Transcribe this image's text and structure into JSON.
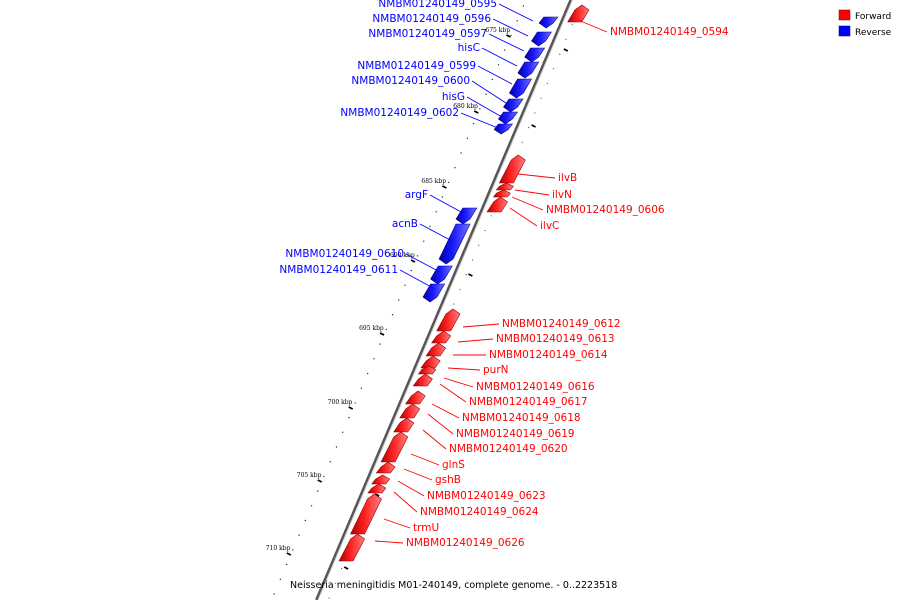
{
  "legend": {
    "forward_label": "Forward",
    "reverse_label": "Reverse",
    "forward_color": "#ff0000",
    "reverse_color": "#0000ff"
  },
  "caption": "Neisseria meningitidis M01-240149, complete genome. - 0..2223518",
  "ticks": [
    "675 kbp",
    "680 kbp",
    "685 kbp",
    "690 kbp",
    "695 kbp",
    "700 kbp",
    "705 kbp",
    "710 kbp"
  ],
  "genes": [
    {
      "name": "NMBM01240149_0594",
      "strand": "forward"
    },
    {
      "name": "NMBM01240149_0595",
      "strand": "reverse"
    },
    {
      "name": "NMBM01240149_0596",
      "strand": "reverse"
    },
    {
      "name": "NMBM01240149_0597",
      "strand": "reverse"
    },
    {
      "name": "hisC",
      "strand": "reverse"
    },
    {
      "name": "NMBM01240149_0599",
      "strand": "reverse"
    },
    {
      "name": "NMBM01240149_0600",
      "strand": "reverse"
    },
    {
      "name": "hisG",
      "strand": "reverse"
    },
    {
      "name": "NMBM01240149_0602",
      "strand": "reverse"
    },
    {
      "name": "ilvB",
      "strand": "forward"
    },
    {
      "name": "ilvN",
      "strand": "forward"
    },
    {
      "name": "NMBM01240149_0606",
      "strand": "forward"
    },
    {
      "name": "ilvC",
      "strand": "forward"
    },
    {
      "name": "argF",
      "strand": "reverse"
    },
    {
      "name": "acnB",
      "strand": "reverse"
    },
    {
      "name": "NMBM01240149_0610",
      "strand": "reverse"
    },
    {
      "name": "NMBM01240149_0611",
      "strand": "reverse"
    },
    {
      "name": "NMBM01240149_0612",
      "strand": "forward"
    },
    {
      "name": "NMBM01240149_0613",
      "strand": "forward"
    },
    {
      "name": "NMBM01240149_0614",
      "strand": "forward"
    },
    {
      "name": "purN",
      "strand": "forward"
    },
    {
      "name": "NMBM01240149_0616",
      "strand": "forward"
    },
    {
      "name": "NMBM01240149_0617",
      "strand": "forward"
    },
    {
      "name": "NMBM01240149_0618",
      "strand": "forward"
    },
    {
      "name": "NMBM01240149_0619",
      "strand": "forward"
    },
    {
      "name": "NMBM01240149_0620",
      "strand": "forward"
    },
    {
      "name": "glnS",
      "strand": "forward"
    },
    {
      "name": "gshB",
      "strand": "forward"
    },
    {
      "name": "NMBM01240149_0623",
      "strand": "forward"
    },
    {
      "name": "NMBM01240149_0624",
      "strand": "forward"
    },
    {
      "name": "trmU",
      "strand": "forward"
    },
    {
      "name": "NMBM01240149_0626",
      "strand": "forward"
    }
  ]
}
